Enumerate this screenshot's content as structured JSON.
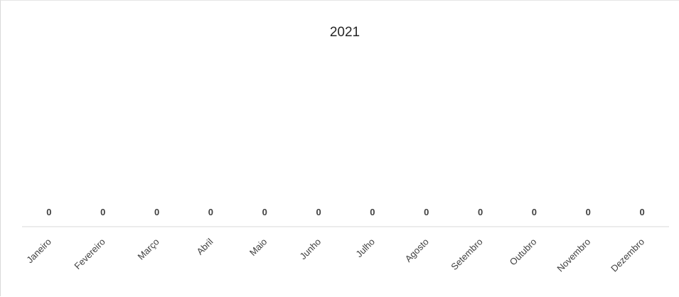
{
  "chart_data": {
    "type": "bar",
    "title": "2021",
    "categories": [
      "Janeiro",
      "Fevereiro",
      "Março",
      "Abril",
      "Maio",
      "Junho",
      "Julho",
      "Agosto",
      "Setembro",
      "Outubro",
      "Novembro",
      "Dezembro"
    ],
    "values": [
      0,
      0,
      0,
      0,
      0,
      0,
      0,
      0,
      0,
      0,
      0,
      0
    ],
    "data_labels": [
      "0",
      "0",
      "0",
      "0",
      "0",
      "0",
      "0",
      "0",
      "0",
      "0",
      "0",
      "0"
    ],
    "grid": false,
    "legend": "none",
    "colors": {
      "axis": "#d9d9d9",
      "text": "#404040",
      "bar": "#4472c4"
    }
  }
}
